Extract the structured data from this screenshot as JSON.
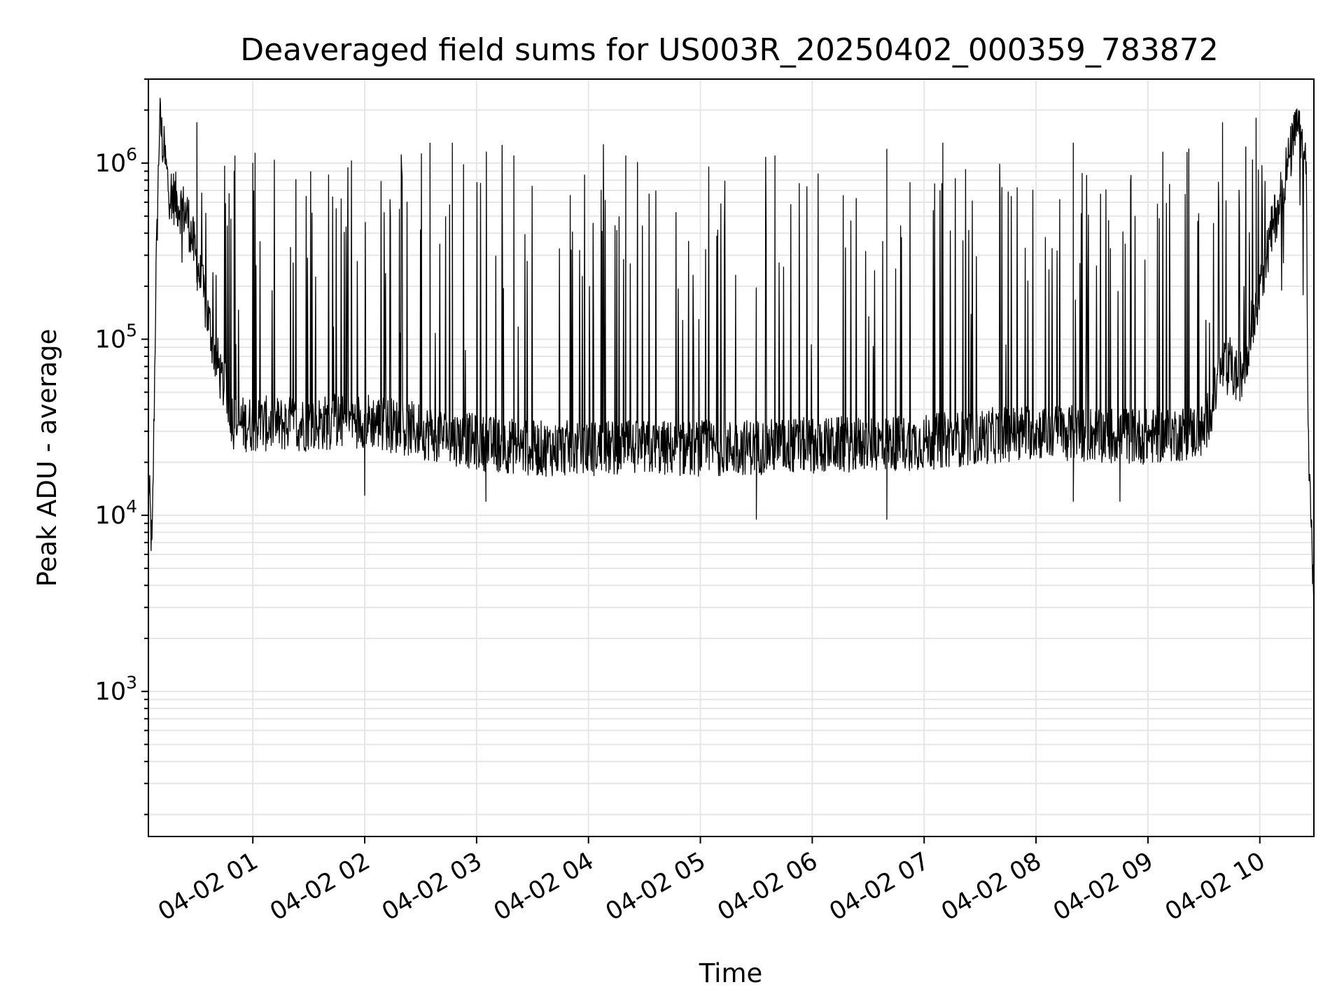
{
  "chart_data": {
    "type": "line",
    "title": "Deaveraged field sums for US003R_20250402_000359_783872",
    "xlabel": "Time",
    "ylabel": "Peak ADU - average",
    "yscale": "log",
    "ylim": [
      150,
      3000000
    ],
    "xlim": [
      "2025-04-02T00:04",
      "2025-04-02T10:29"
    ],
    "grid": true,
    "line_color": "#000000",
    "grid_color": "#e6e6e6",
    "x_ticks": [
      {
        "value": "2025-04-02T01:00",
        "label": "04-02 01"
      },
      {
        "value": "2025-04-02T02:00",
        "label": "04-02 02"
      },
      {
        "value": "2025-04-02T03:00",
        "label": "04-02 03"
      },
      {
        "value": "2025-04-02T04:00",
        "label": "04-02 04"
      },
      {
        "value": "2025-04-02T05:00",
        "label": "04-02 05"
      },
      {
        "value": "2025-04-02T06:00",
        "label": "04-02 06"
      },
      {
        "value": "2025-04-02T07:00",
        "label": "04-02 07"
      },
      {
        "value": "2025-04-02T08:00",
        "label": "04-02 08"
      },
      {
        "value": "2025-04-02T09:00",
        "label": "04-02 09"
      },
      {
        "value": "2025-04-02T10:00",
        "label": "04-02 10"
      }
    ],
    "y_ticks": [
      {
        "value": 1000,
        "base": "10",
        "exp": "3"
      },
      {
        "value": 10000,
        "base": "10",
        "exp": "4"
      },
      {
        "value": 100000,
        "base": "10",
        "exp": "5"
      },
      {
        "value": 1000000,
        "base": "10",
        "exp": "6"
      }
    ],
    "series": [
      {
        "baseline": [
          [
            "2025-04-02T00:04",
            17000
          ],
          [
            "2025-04-02T00:06",
            6000
          ],
          [
            "2025-04-02T00:08",
            200000
          ],
          [
            "2025-04-02T00:10",
            1800000
          ],
          [
            "2025-04-02T00:15",
            700000
          ],
          [
            "2025-04-02T00:25",
            500000
          ],
          [
            "2025-04-02T00:35",
            150000
          ],
          [
            "2025-04-02T00:40",
            80000
          ],
          [
            "2025-04-02T00:50",
            33000
          ],
          [
            "2025-04-02T01:30",
            33000
          ],
          [
            "2025-04-02T02:00",
            35000
          ],
          [
            "2025-04-02T02:30",
            30000
          ],
          [
            "2025-04-02T03:00",
            26000
          ],
          [
            "2025-04-02T03:30",
            24000
          ],
          [
            "2025-04-02T04:00",
            24000
          ],
          [
            "2025-04-02T05:00",
            24000
          ],
          [
            "2025-04-02T06:00",
            25000
          ],
          [
            "2025-04-02T07:00",
            26000
          ],
          [
            "2025-04-02T08:00",
            30000
          ],
          [
            "2025-04-02T09:00",
            28000
          ],
          [
            "2025-04-02T09:30",
            30000
          ],
          [
            "2025-04-02T09:40",
            70000
          ],
          [
            "2025-04-02T09:50",
            60000
          ],
          [
            "2025-04-02T10:00",
            200000
          ],
          [
            "2025-04-02T10:10",
            600000
          ],
          [
            "2025-04-02T10:20",
            1600000
          ],
          [
            "2025-04-02T10:25",
            900000
          ],
          [
            "2025-04-02T10:26",
            25000
          ],
          [
            "2025-04-02T10:29",
            3000
          ]
        ],
        "spike_peaks": [
          [
            "2025-04-02T00:30",
            1700000
          ],
          [
            "2025-04-02T00:50",
            900000
          ],
          [
            "2025-04-02T01:00",
            1000000
          ],
          [
            "2025-04-02T02:35",
            1300000
          ],
          [
            "2025-04-02T02:47",
            1300000
          ],
          [
            "2025-04-02T03:20",
            1100000
          ],
          [
            "2025-04-02T04:20",
            1100000
          ],
          [
            "2025-04-02T05:40",
            1100000
          ],
          [
            "2025-04-02T06:40",
            1200000
          ],
          [
            "2025-04-02T07:10",
            1300000
          ],
          [
            "2025-04-02T08:20",
            1300000
          ],
          [
            "2025-04-02T09:40",
            1700000
          ],
          [
            "2025-04-02T09:58",
            1800000
          ]
        ],
        "dips": [
          [
            "2025-04-02T02:00",
            13000
          ],
          [
            "2025-04-02T03:05",
            12000
          ],
          [
            "2025-04-02T05:30",
            9500
          ],
          [
            "2025-04-02T06:40",
            9500
          ],
          [
            "2025-04-02T08:20",
            12000
          ],
          [
            "2025-04-02T08:45",
            12000
          ]
        ]
      }
    ]
  }
}
